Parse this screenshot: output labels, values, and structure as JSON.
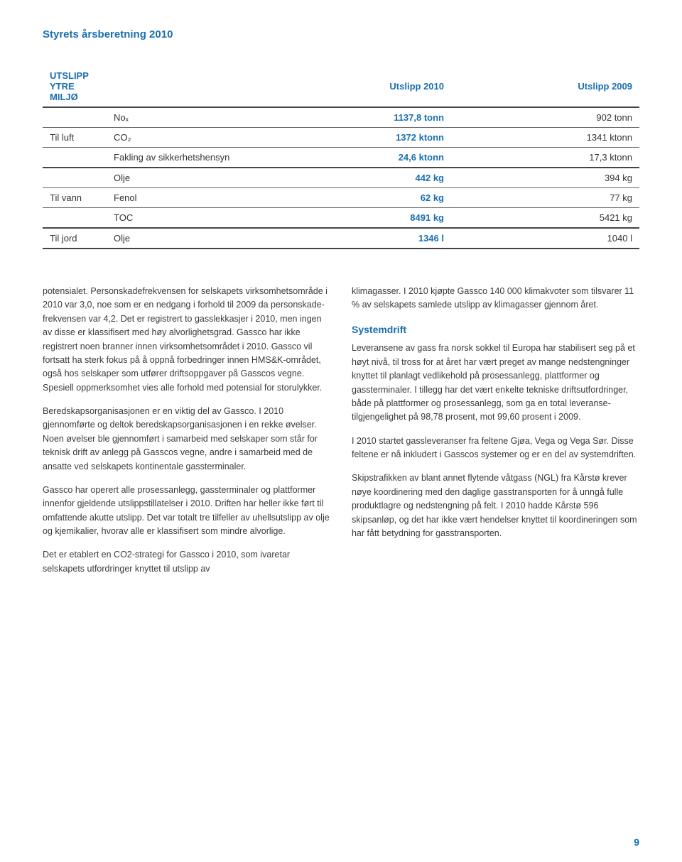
{
  "page_heading": "Styrets årsberetning 2010",
  "table": {
    "title": "UTSLIPP YTRE MILJØ",
    "title_color": "#1a6fb0",
    "col_2010": "Utslipp 2010",
    "col_2009": "Utslipp 2009",
    "value_2010_color": "#1a6fb0",
    "value_2009_color": "#333333",
    "border_color": "#666666",
    "rows": [
      {
        "group": "",
        "label": "Noₓ",
        "v2010": "1137,8 tonn",
        "v2009": "902 tonn"
      },
      {
        "group": "Til luft",
        "label": "CO₂",
        "v2010": "1372 ktonn",
        "v2009": "1341 ktonn"
      },
      {
        "group": "",
        "label": "Fakling av sikkerhetshensyn",
        "v2010": "24,6 ktonn",
        "v2009": "17,3 ktonn"
      },
      {
        "group": "",
        "label": "Olje",
        "v2010": "442 kg",
        "v2009": "394 kg"
      },
      {
        "group": "Til vann",
        "label": "Fenol",
        "v2010": "62 kg",
        "v2009": "77 kg"
      },
      {
        "group": "",
        "label": "TOC",
        "v2010": "8491 kg",
        "v2009": "5421 kg"
      },
      {
        "group": "Til jord",
        "label": "Olje",
        "v2010": "1346 l",
        "v2009": "1040 l"
      }
    ]
  },
  "left_col": {
    "p1": "potensialet. Personskadefrekvensen for selskapets virksomhetsområde i 2010 var 3,0, noe som er en nedgang i forhold til 2009 da personskade­frekvensen var 4,2. Det er registrert to gasslekkasjer i 2010, men ingen av disse er klassifisert med høy alvorlighetsgrad. Gassco har ikke registrert noen branner innen virksomhetsområdet i 2010. Gassco vil fortsatt ha sterk fokus på å oppnå forbedringer innen HMS&K-området, også hos selskaper som utfører driftsoppgaver på Gasscos vegne. Spesiell oppmerksomhet vies alle forhold med potensial for storulykker.",
    "p2": "Beredskapsorganisasjonen er en viktig del av Gassco. I 2010 gjennomførte og deltok beredskapsorganisa­sjonen i en rekke øvelser. Noen øvelser ble gjennom­ført i samarbeid med selskaper som står for teknisk drift av anlegg på Gasscos vegne, andre i samarbeid med de ansatte ved selskapets kontinentale gassterminaler.",
    "p3": "Gassco har operert alle prosessanlegg, gassterminaler og plattformer innenfor gjeldende utslippstillatelser i 2010. Driften har heller ikke ført til omfattende akutte utslipp. Det var totalt tre tilfeller av uhellsutslipp av olje og kjemikalier, hvorav alle er klassifisert som mindre alvorlige.",
    "p4": "Det er etablert en CO2-strategi for Gassco i 2010, som ivaretar selskapets utfordringer knyttet til utslipp av"
  },
  "right_col": {
    "p1": "klimagasser. I 2010 kjøpte Gassco 140 000 klimakvoter som tilsvarer 11 % av selskapets samlede utslipp av klimagasser gjennom året.",
    "subhead": "Systemdrift",
    "p2": "Leveransene av gass fra norsk sokkel til Europa har stabilisert seg på et høyt nivå, til tross for at året har vært preget av mange nedstengninger knyttet til planlagt vedlikehold på prosessanlegg, plattformer og gassterminaler. I tillegg har det vært enkelte tekniske driftsutfordringer, både på plattformer og prosessanlegg, som ga en total leveranse­tilgjengelighet på 98,78 prosent, mot 99,60 prosent i 2009.",
    "p3": "I 2010 startet gassleveranser fra feltene Gjøa, Vega og Vega Sør. Disse feltene er nå inkludert i Gasscos systemer og er en del av systemdriften.",
    "p4": "Skipstrafikken av blant annet flytende våtgass (NGL) fra Kårstø krever nøye koordinering med den daglige gasstransporten for å unngå fulle produktlagre og nedstengning på felt. I 2010 hadde Kårstø 596 skipsanløp, og det har ikke vært hendelser knyttet til koordineringen som har fått betydning for gasstransporten."
  },
  "page_number": "9",
  "colors": {
    "accent": "#1a6fb0",
    "body_text": "#3a3a3a",
    "background": "#ffffff"
  },
  "typography": {
    "body_fontsize": 12.5,
    "heading_fontsize": 15,
    "subhead_fontsize": 14,
    "line_height": 1.55
  }
}
